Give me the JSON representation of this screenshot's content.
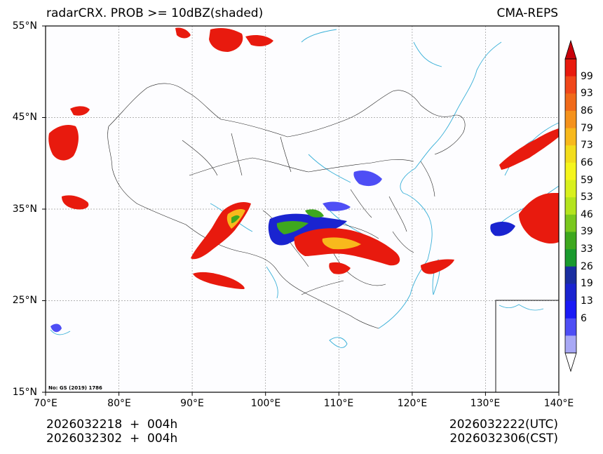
{
  "header": {
    "title_left": "radarCRX. PROB >= 10dBZ(shaded)",
    "title_right": "CMA-REPS"
  },
  "map": {
    "lon_ticks": [
      "70°E",
      "80°E",
      "90°E",
      "100°E",
      "110°E",
      "120°E",
      "130°E",
      "140°E"
    ],
    "lat_ticks": [
      "55°N",
      "45°N",
      "35°N",
      "25°N",
      "15°N"
    ],
    "map_notice": "No: GS (2019) 1786",
    "extent": {
      "lon_min": 70,
      "lon_max": 140,
      "lat_min": 15,
      "lat_max": 55
    }
  },
  "colorbar": {
    "labels": [
      "99",
      "93",
      "86",
      "79",
      "73",
      "66",
      "59",
      "53",
      "46",
      "39",
      "33",
      "26",
      "19",
      "13",
      "6"
    ],
    "colors": [
      "#e81a0e",
      "#f0471a",
      "#f06a1a",
      "#f5921c",
      "#f8b91c",
      "#f3dd1c",
      "#f5f51c",
      "#d8f01e",
      "#b4e41e",
      "#7ac81e",
      "#3ea81e",
      "#1a9a2e",
      "#1a2ea0",
      "#1a24d0",
      "#1a1af5",
      "#4e4ef5",
      "#a8a8f5"
    ]
  },
  "footer": {
    "init_utc_line": "2026032218  +  004h",
    "init_cst_line": "2026032302  +  004h",
    "valid_utc": "2026032222(UTC)",
    "valid_cst": "2026032306(CST)"
  }
}
